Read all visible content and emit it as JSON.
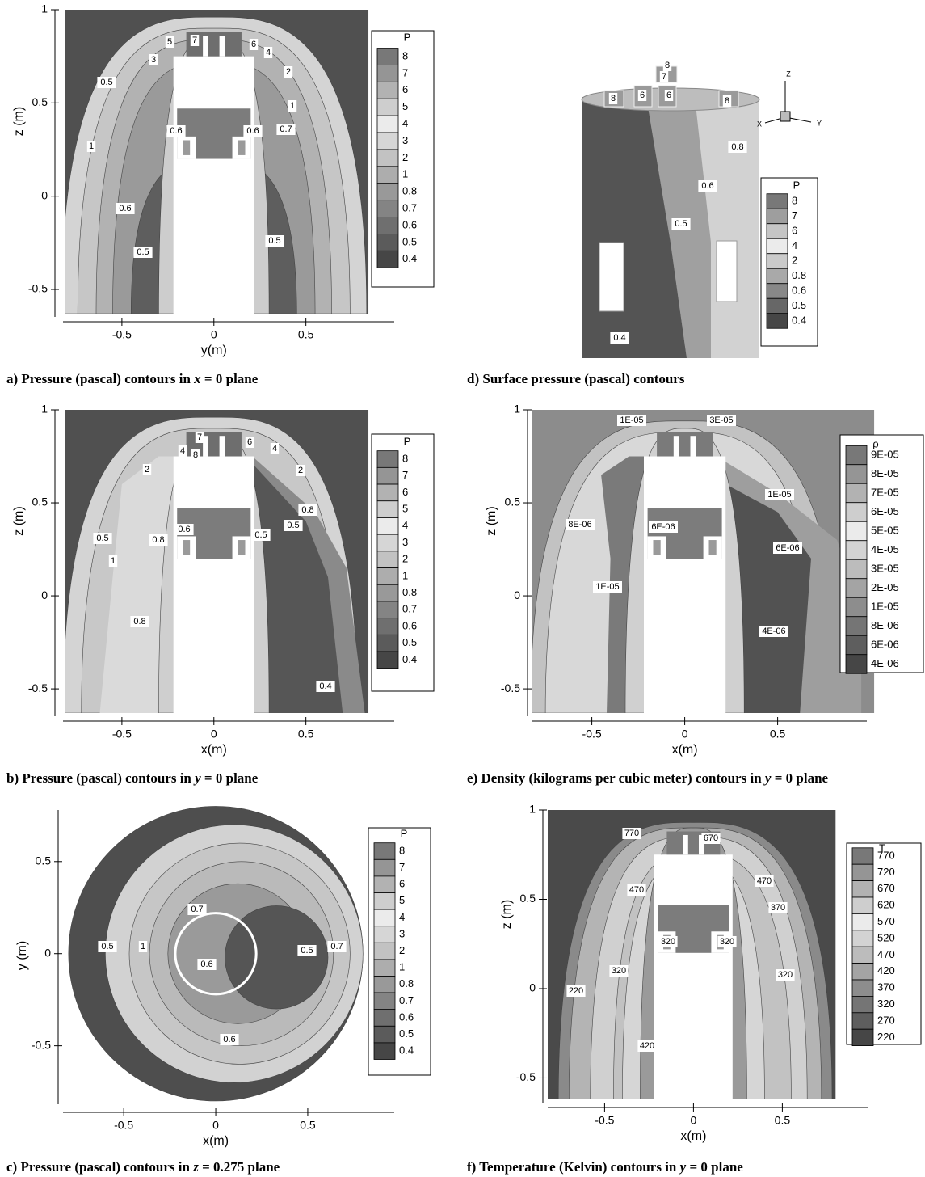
{
  "panels": [
    {
      "caption": {
        "text": "a) Pressure (pascal) contours in ",
        "var": "x",
        "rest": " = 0 plane"
      },
      "xlabel": "y(m)",
      "ylabel": "z (m)",
      "xlim": [
        -0.82,
        0.98
      ],
      "ylim": [
        -0.63,
        1
      ],
      "xticks": [
        -0.5,
        0,
        0.5
      ],
      "yticks": [
        -0.5,
        0,
        0.5,
        1
      ],
      "legend_title": "P",
      "legend": [
        "8",
        "7",
        "6",
        "5",
        "4",
        "3",
        "2",
        "1",
        "0.8",
        "0.7",
        "0.6",
        "0.5",
        "0.4"
      ],
      "contour_labels": [
        "5",
        "7",
        "6",
        "3",
        "4",
        "0.5",
        "2",
        "1",
        "0.6",
        "0.6",
        "0.7",
        "1",
        "0.6",
        "0.5",
        "0.5"
      ]
    },
    {
      "caption": {
        "text": "b) Pressure (pascal) contours in ",
        "var": "y",
        "rest": " = 0 plane"
      },
      "xlabel": "x(m)",
      "ylabel": "z (m)",
      "xlim": [
        -0.82,
        0.98
      ],
      "ylim": [
        -0.63,
        1
      ],
      "xticks": [
        -0.5,
        0,
        0.5
      ],
      "yticks": [
        -0.5,
        0,
        0.5,
        1
      ],
      "legend_title": "P",
      "legend": [
        "8",
        "7",
        "6",
        "5",
        "4",
        "3",
        "2",
        "1",
        "0.8",
        "0.7",
        "0.6",
        "0.5",
        "0.4"
      ],
      "contour_labels": [
        "7",
        "6",
        "4",
        "8",
        "4",
        "2",
        "2",
        "0.8",
        "0.5",
        "0.5",
        "0.6",
        "0.8",
        "0.5",
        "1",
        "0.8",
        "0.4"
      ]
    },
    {
      "caption": {
        "text": "c) Pressure (pascal) contours in ",
        "var": "z",
        "rest": " = 0.275 plane"
      },
      "xlabel": "x(m)",
      "ylabel": "y (m)",
      "xlim": [
        -0.83,
        0.97
      ],
      "ylim": [
        -0.8,
        0.78
      ],
      "xticks": [
        -0.5,
        0,
        0.5
      ],
      "yticks": [
        -0.5,
        0,
        0.5
      ],
      "legend_title": "P",
      "legend": [
        "8",
        "7",
        "6",
        "5",
        "4",
        "3",
        "2",
        "1",
        "0.8",
        "0.7",
        "0.6",
        "0.5",
        "0.4"
      ],
      "contour_labels": [
        "0.7",
        "0.5",
        "1",
        "0.6",
        "0.5",
        "0.7",
        "0.6"
      ]
    },
    {
      "caption": {
        "text": "d) Surface pressure (pascal) contours"
      },
      "legend_title": "P",
      "legend": [
        "8",
        "7",
        "6",
        "4",
        "2",
        "0.8",
        "0.6",
        "0.5",
        "0.4"
      ],
      "contour_labels": [
        "8",
        "7",
        "8",
        "6",
        "6",
        "8",
        "0.8",
        "0.6",
        "0.5",
        "0.4"
      ],
      "triad": [
        "Z",
        "X",
        "Y"
      ]
    },
    {
      "caption": {
        "text": "e) Density (kilograms per cubic meter) contours in ",
        "var": "y",
        "rest": " = 0 plane"
      },
      "xlabel": "x(m)",
      "ylabel": "z (m)",
      "xlim": [
        -0.82,
        0.98
      ],
      "ylim": [
        -0.63,
        1
      ],
      "xticks": [
        -0.5,
        0,
        0.5
      ],
      "yticks": [
        -0.5,
        0,
        0.5,
        1
      ],
      "legend_title": "ρ",
      "legend": [
        "9E-05",
        "8E-05",
        "7E-05",
        "6E-05",
        "5E-05",
        "4E-05",
        "3E-05",
        "2E-05",
        "1E-05",
        "8E-06",
        "6E-06",
        "4E-06"
      ],
      "contour_labels": [
        "1E-05",
        "3E-05",
        "1E-05",
        "8E-06",
        "6E-06",
        "6E-06",
        "1E-05",
        "4E-06"
      ]
    },
    {
      "caption": {
        "text": "f) Temperature (Kelvin) contours in ",
        "var": "y",
        "rest": " = 0 plane"
      },
      "xlabel": "x(m)",
      "ylabel": "z (m)",
      "xlim": [
        -0.82,
        0.98
      ],
      "ylim": [
        -0.62,
        1
      ],
      "xticks": [
        -0.5,
        0,
        0.5
      ],
      "yticks": [
        -0.5,
        0,
        0.5,
        1
      ],
      "legend_title": "T",
      "legend": [
        "770",
        "720",
        "670",
        "620",
        "570",
        "520",
        "470",
        "420",
        "370",
        "320",
        "270",
        "220"
      ],
      "contour_labels": [
        "770",
        "670",
        "470",
        "470",
        "370",
        "320",
        "320",
        "320",
        "320",
        "220",
        "420"
      ]
    }
  ]
}
